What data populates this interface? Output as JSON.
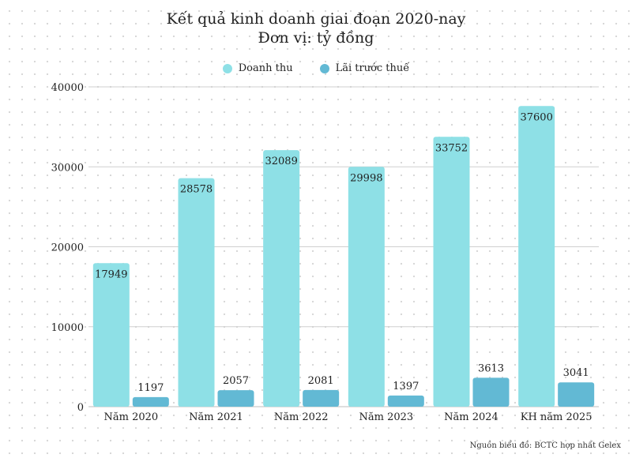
{
  "chart_data": {
    "type": "bar",
    "title": "Kết quả kinh doanh giai đoạn 2020-nay",
    "subtitle": "Đơn vị: tỷ đồng",
    "categories": [
      "Năm 2020",
      "Năm 2021",
      "Năm 2022",
      "Năm 2023",
      "Năm 2024",
      "KH năm 2025"
    ],
    "series": [
      {
        "name": "Doanh thu",
        "color": "#8ee0e6",
        "values": [
          17949,
          28578,
          32089,
          29998,
          33752,
          37600
        ]
      },
      {
        "name": "Lãi trước thuế",
        "color": "#62b9d4",
        "values": [
          1197,
          2057,
          2081,
          1397,
          3613,
          3041
        ]
      }
    ],
    "yticks": [
      0,
      10000,
      20000,
      30000,
      40000
    ],
    "ylim": [
      0,
      40000
    ],
    "grid": true,
    "legend_position": "top-center"
  },
  "source": "Nguồn biểu đồ: BCTC hợp nhất  Gelex"
}
